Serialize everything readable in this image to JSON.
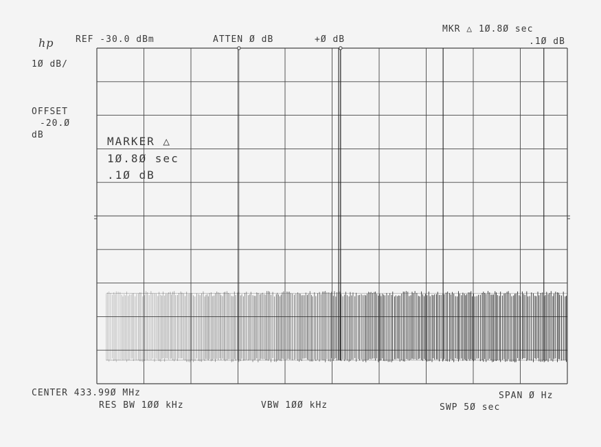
{
  "header": {
    "logo": "hp",
    "ref": "REF -30.0 dBm",
    "atten": "ATTEN Ø dB",
    "offset_top": "+Ø dB",
    "mkr_line1": "MKR △ 1Ø.8Ø  sec",
    "mkr_line2": ".1Ø dB",
    "scale": "1Ø dB/",
    "offset_label": "OFFSET",
    "offset_value": "-20.Ø",
    "offset_unit": "dB"
  },
  "marker_box": {
    "title": "MARKER △",
    "time": "1Ø.8Ø  sec",
    "level": ".1Ø dB"
  },
  "footer": {
    "center": "CENTER 433.99Ø MHz",
    "res_bw": "RES BW 1ØØ kHz",
    "vbw": "VBW 1ØØ kHz",
    "span": "SPAN Ø Hz",
    "sweep": "SWP 5Ø  sec"
  },
  "chart_data": {
    "type": "line",
    "xlabel": "",
    "ylabel": "",
    "xlim": [
      0,
      50
    ],
    "ylim": [
      -130,
      -30
    ],
    "x_unit": "sec",
    "y_unit": "dBm",
    "grid": true,
    "grid_divisions": {
      "x": 10,
      "y": 10
    },
    "reference_level_dBm": -30,
    "scale_dB_per_div": 10,
    "markers": [
      {
        "x": 15.1,
        "y": -30
      },
      {
        "x": 25.9,
        "y": -30
      }
    ],
    "marker_delta": {
      "x": 10.8,
      "y": 0.1
    },
    "spikes": [
      {
        "x": 25.7,
        "y": -30
      },
      {
        "x": 25.9,
        "y": -30
      },
      {
        "x": 36.8,
        "y": -30
      },
      {
        "x": 47.5,
        "y": -30
      }
    ],
    "burst": {
      "x_start": 1.0,
      "x_end": 50,
      "y_high": -103,
      "y_low": -123
    },
    "trace_color": "#222222",
    "grid_color": "#444444"
  }
}
